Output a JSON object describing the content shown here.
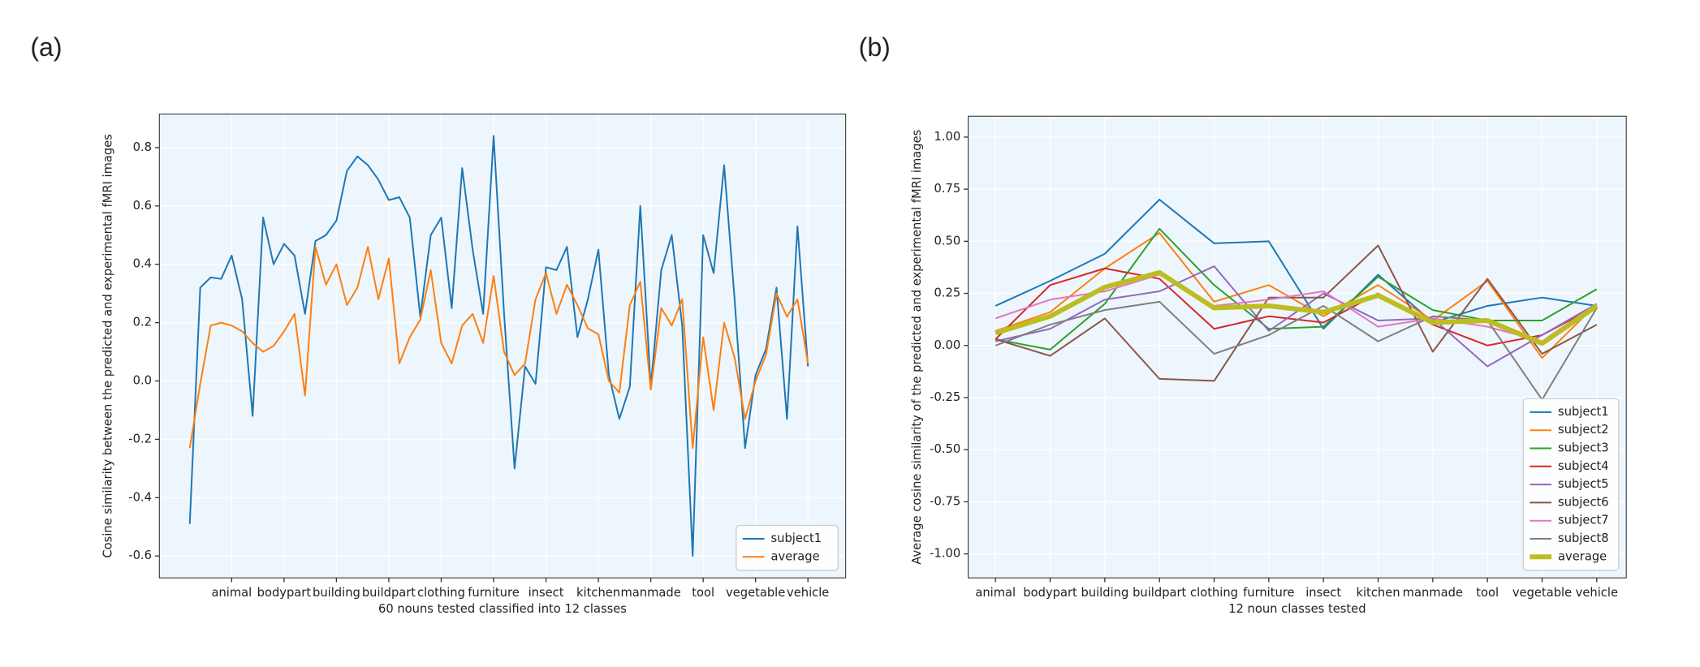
{
  "chart_data": [
    {
      "type": "line",
      "label": "(a)",
      "xlabel": "60 nouns tested classified into 12 classes",
      "ylabel": "Cosine similarity between the predicted and experimental fMRI images",
      "categories": [
        null,
        null,
        null,
        null,
        "animal",
        null,
        null,
        null,
        null,
        "bodypart",
        null,
        null,
        null,
        null,
        "building",
        null,
        null,
        null,
        null,
        "buildpart",
        null,
        null,
        null,
        null,
        "clothing",
        null,
        null,
        null,
        null,
        "furniture",
        null,
        null,
        null,
        null,
        "insect",
        null,
        null,
        null,
        null,
        "kitchen",
        null,
        null,
        null,
        null,
        "manmade",
        null,
        null,
        null,
        null,
        "tool",
        null,
        null,
        null,
        null,
        "vegetable",
        null,
        null,
        null,
        null,
        "vehicle"
      ],
      "series": [
        {
          "name": "subject1",
          "color": "#1f77b4",
          "values": [
            -0.49,
            0.32,
            0.355,
            0.35,
            0.43,
            0.28,
            -0.12,
            0.56,
            0.4,
            0.47,
            0.43,
            0.23,
            0.48,
            0.5,
            0.55,
            0.72,
            0.77,
            0.74,
            0.69,
            0.62,
            0.63,
            0.56,
            0.22,
            0.5,
            0.56,
            0.25,
            0.73,
            0.45,
            0.23,
            0.84,
            0.23,
            -0.3,
            0.05,
            -0.01,
            0.39,
            0.38,
            0.46,
            0.15,
            0.28,
            0.45,
            0.02,
            -0.13,
            -0.02,
            0.6,
            -0.02,
            0.38,
            0.5,
            0.19,
            -0.6,
            0.5,
            0.37,
            0.74,
            0.28,
            -0.23,
            0.02,
            0.11,
            0.32,
            -0.13,
            0.53,
            0.05
          ]
        },
        {
          "name": "average",
          "color": "#ff7f0e",
          "values": [
            -0.23,
            -0.01,
            0.19,
            0.2,
            0.19,
            0.17,
            0.13,
            0.1,
            0.12,
            0.17,
            0.23,
            -0.05,
            0.46,
            0.33,
            0.4,
            0.26,
            0.32,
            0.46,
            0.28,
            0.42,
            0.06,
            0.15,
            0.21,
            0.38,
            0.13,
            0.06,
            0.19,
            0.23,
            0.13,
            0.36,
            0.1,
            0.02,
            0.06,
            0.28,
            0.37,
            0.23,
            0.33,
            0.26,
            0.18,
            0.16,
            0.0,
            -0.04,
            0.26,
            0.34,
            -0.03,
            0.25,
            0.19,
            0.28,
            -0.23,
            0.15,
            -0.1,
            0.2,
            0.08,
            -0.13,
            0.0,
            0.09,
            0.3,
            0.22,
            0.28,
            0.06
          ]
        }
      ],
      "ylim": [
        -0.675,
        0.915
      ],
      "yticks": [
        -0.6,
        -0.4,
        -0.2,
        {
          "value": 0,
          "label": "0.0"
        },
        0.2,
        0.4,
        0.6,
        0.8
      ],
      "grid": true,
      "legend": "lower right"
    },
    {
      "type": "line",
      "label": "(b)",
      "xlabel": "12 noun classes tested",
      "ylabel": "Average cosine similarity of the predicted and experimental fMRI images",
      "categories": [
        "animal",
        "bodypart",
        "building",
        "buildpart",
        "clothing",
        "furniture",
        "insect",
        "kitchen",
        "manmade",
        "tool",
        "vegetable",
        "vehicle"
      ],
      "series": [
        {
          "name": "subject1",
          "color": "#1f77b4",
          "values": [
            0.19,
            0.31,
            0.44,
            0.7,
            0.49,
            0.5,
            0.08,
            0.34,
            0.11,
            0.19,
            0.23,
            0.19
          ]
        },
        {
          "name": "subject2",
          "color": "#ff7f0e",
          "values": [
            0.07,
            0.16,
            0.37,
            0.54,
            0.21,
            0.29,
            0.14,
            0.29,
            0.12,
            0.31,
            -0.06,
            0.2
          ]
        },
        {
          "name": "subject3",
          "color": "#2ca02c",
          "values": [
            0.03,
            -0.02,
            0.2,
            0.56,
            0.29,
            0.08,
            0.09,
            0.33,
            0.17,
            0.12,
            0.12,
            0.27
          ]
        },
        {
          "name": "subject4",
          "color": "#d62728",
          "values": [
            0.03,
            0.29,
            0.37,
            0.32,
            0.08,
            0.14,
            0.11,
            0.25,
            0.1,
            0.0,
            0.05,
            0.19
          ]
        },
        {
          "name": "subject5",
          "color": "#9467bd",
          "values": [
            0.02,
            0.08,
            0.22,
            0.26,
            0.38,
            0.07,
            0.25,
            0.12,
            0.13,
            -0.1,
            0.05,
            0.2
          ]
        },
        {
          "name": "subject6",
          "color": "#8c564b",
          "values": [
            0.03,
            -0.05,
            0.13,
            -0.16,
            -0.17,
            0.23,
            0.23,
            0.48,
            -0.03,
            0.32,
            -0.04,
            0.1
          ]
        },
        {
          "name": "subject7",
          "color": "#e377c2",
          "values": [
            0.13,
            0.22,
            0.26,
            0.34,
            0.19,
            0.22,
            0.26,
            0.09,
            0.13,
            0.09,
            0.02,
            0.2
          ]
        },
        {
          "name": "subject8",
          "color": "#7f7f7f",
          "values": [
            0.0,
            0.1,
            0.17,
            0.21,
            -0.04,
            0.05,
            0.19,
            0.02,
            0.14,
            0.12,
            -0.26,
            0.18
          ]
        },
        {
          "name": "average",
          "color": "#bcbd22",
          "linewidth": 4.5,
          "values": [
            0.06,
            0.14,
            0.28,
            0.35,
            0.18,
            0.19,
            0.16,
            0.24,
            0.11,
            0.12,
            0.01,
            0.19
          ]
        }
      ],
      "ylim": [
        -1.115,
        1.1
      ],
      "yticks": [
        {
          "value": -1,
          "label": "-1.00"
        },
        -0.75,
        {
          "value": -0.5,
          "label": "-0.50"
        },
        -0.25,
        {
          "value": 0,
          "label": "0.00"
        },
        0.25,
        {
          "value": 0.5,
          "label": "0.50"
        },
        0.75,
        {
          "value": 1,
          "label": "1.00"
        }
      ],
      "grid": true,
      "legend": "lower right"
    }
  ]
}
